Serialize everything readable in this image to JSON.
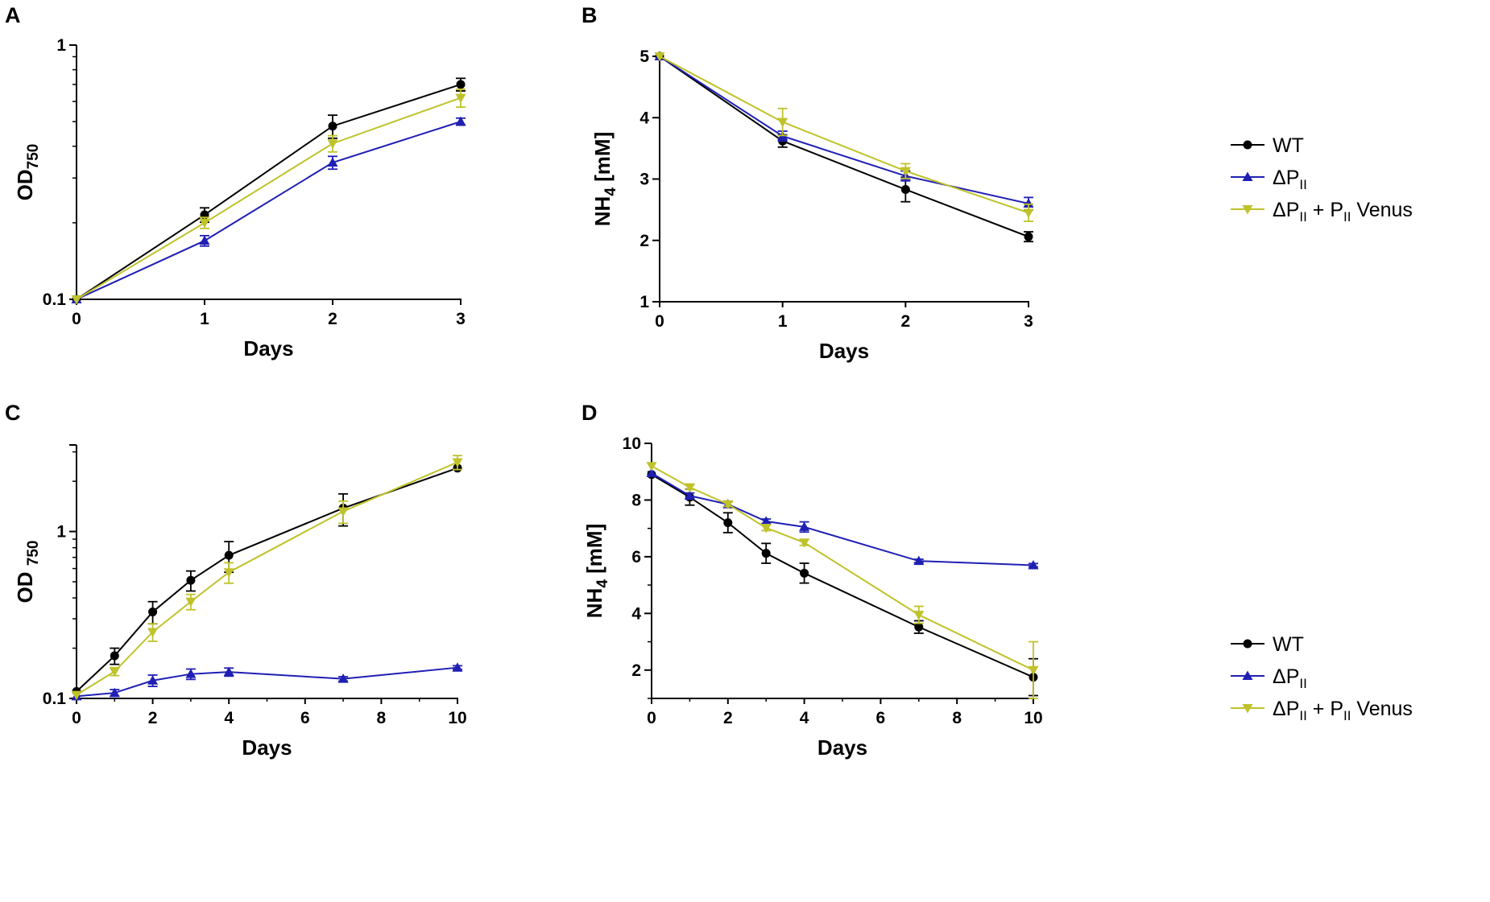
{
  "colors": {
    "wt": "#000000",
    "dp": "#1f1fb4",
    "venus": "#bfc22a",
    "axis": "#000000"
  },
  "legend": {
    "wt": "WT",
    "dp": {
      "base": "ΔP",
      "sub": "II"
    },
    "venus": {
      "base": "ΔP",
      "sub1": "II",
      "mid": " + P",
      "sub2": "II",
      "tail": " Venus"
    }
  },
  "chart_data": [
    {
      "panel": "A",
      "type": "line",
      "scale": "log",
      "xlabel": "Days",
      "ylabel": {
        "base": "OD",
        "sub": "750"
      },
      "xlim": [
        0,
        3
      ],
      "ylim": [
        0.1,
        1
      ],
      "xticks": [
        "0",
        "1",
        "2",
        "3"
      ],
      "yticks": [
        "0.1",
        "1"
      ],
      "series": [
        {
          "key": "wt",
          "name": "WT",
          "marker": "circle",
          "x": [
            0,
            1,
            2,
            3
          ],
          "y": [
            0.1,
            0.215,
            0.48,
            0.7
          ],
          "err": [
            0,
            0.014,
            0.05,
            0.04
          ]
        },
        {
          "key": "dp",
          "name": "ΔPII",
          "marker": "triangle-up",
          "x": [
            0,
            1,
            2,
            3
          ],
          "y": [
            0.1,
            0.17,
            0.345,
            0.5
          ],
          "err": [
            0,
            0.008,
            0.02,
            0.016
          ]
        },
        {
          "key": "venus",
          "name": "ΔPII + PII Venus",
          "marker": "triangle-down",
          "x": [
            0,
            1,
            2,
            3
          ],
          "y": [
            0.1,
            0.2,
            0.41,
            0.62
          ],
          "err": [
            0,
            0.01,
            0.03,
            0.05
          ]
        }
      ]
    },
    {
      "panel": "B",
      "type": "line",
      "scale": "linear",
      "xlabel": "Days",
      "ylabel": {
        "base": "NH",
        "sub": "4",
        "tail": " [mM]"
      },
      "xlim": [
        0,
        3
      ],
      "ylim": [
        1,
        5
      ],
      "xticks": [
        "0",
        "1",
        "2",
        "3"
      ],
      "yticks": [
        "1",
        "2",
        "3",
        "4",
        "5"
      ],
      "series": [
        {
          "key": "wt",
          "name": "WT",
          "marker": "circle",
          "x": [
            0,
            1,
            2,
            3
          ],
          "y": [
            5,
            3.62,
            2.83,
            2.06
          ],
          "err": [
            0,
            0.1,
            0.2,
            0.08
          ]
        },
        {
          "key": "dp",
          "name": "ΔPII",
          "marker": "triangle-up",
          "x": [
            0,
            1,
            2,
            3
          ],
          "y": [
            5,
            3.7,
            3.05,
            2.6
          ],
          "err": [
            0,
            0.08,
            0.08,
            0.1
          ]
        },
        {
          "key": "venus",
          "name": "ΔPII + PII Venus",
          "marker": "triangle-down",
          "x": [
            0,
            1,
            2,
            3
          ],
          "y": [
            5,
            3.93,
            3.13,
            2.45
          ],
          "err": [
            0,
            0.22,
            0.12,
            0.14
          ]
        }
      ]
    },
    {
      "panel": "C",
      "type": "line",
      "scale": "log",
      "xlabel": "Days",
      "ylabel": {
        "base": "OD ",
        "sub": "750"
      },
      "xlim": [
        0,
        10
      ],
      "ylim": [
        0.1,
        3.3
      ],
      "xticks": [
        "0",
        "2",
        "4",
        "6",
        "8",
        "10"
      ],
      "yticks": [
        "0.1",
        "1"
      ],
      "series": [
        {
          "key": "wt",
          "name": "WT",
          "marker": "circle",
          "x": [
            0,
            1,
            2,
            3,
            4,
            7,
            10
          ],
          "y": [
            0.11,
            0.18,
            0.33,
            0.51,
            0.72,
            1.38,
            2.4
          ],
          "err": [
            0,
            0.02,
            0.05,
            0.07,
            0.15,
            0.3,
            0
          ]
        },
        {
          "key": "dp",
          "name": "ΔPII",
          "marker": "triangle-up",
          "x": [
            0,
            1,
            2,
            3,
            4,
            7,
            10
          ],
          "y": [
            0.103,
            0.108,
            0.128,
            0.14,
            0.144,
            0.131,
            0.153
          ],
          "err": [
            0,
            0.005,
            0.01,
            0.01,
            0.008,
            0.004,
            0.004
          ]
        },
        {
          "key": "venus",
          "name": "ΔPII + PII Venus",
          "marker": "triangle-down",
          "x": [
            0,
            1,
            2,
            3,
            4,
            7,
            10
          ],
          "y": [
            0.105,
            0.145,
            0.25,
            0.38,
            0.57,
            1.32,
            2.6
          ],
          "err": [
            0,
            0.008,
            0.03,
            0.04,
            0.08,
            0.2,
            0.25
          ]
        }
      ]
    },
    {
      "panel": "D",
      "type": "line",
      "scale": "linear",
      "xlabel": "Days",
      "ylabel": {
        "base": "NH",
        "sub": "4",
        "tail": " [mM]"
      },
      "xlim": [
        0,
        10
      ],
      "ylim": [
        1,
        10
      ],
      "xticks": [
        "0",
        "2",
        "4",
        "6",
        "8",
        "10"
      ],
      "yticks": [
        "2",
        "4",
        "6",
        "8",
        "10"
      ],
      "series": [
        {
          "key": "wt",
          "name": "WT",
          "marker": "circle",
          "x": [
            0,
            1,
            2,
            3,
            4,
            7,
            10
          ],
          "y": [
            8.9,
            8.1,
            7.2,
            6.12,
            5.42,
            3.52,
            1.75
          ],
          "err": [
            0,
            0.28,
            0.35,
            0.35,
            0.35,
            0.22,
            0.65
          ]
        },
        {
          "key": "dp",
          "name": "ΔPII",
          "marker": "triangle-up",
          "x": [
            0,
            1,
            2,
            3,
            4,
            7,
            10
          ],
          "y": [
            8.95,
            8.15,
            7.85,
            7.25,
            7.05,
            5.85,
            5.7
          ],
          "err": [
            0,
            0.1,
            0.1,
            0.08,
            0.18,
            0.06,
            0.06
          ]
        },
        {
          "key": "venus",
          "name": "ΔPII + PII Venus",
          "marker": "triangle-down",
          "x": [
            0,
            1,
            2,
            3,
            4,
            7,
            10
          ],
          "y": [
            9.2,
            8.45,
            7.85,
            7.02,
            6.5,
            3.95,
            2.0
          ],
          "err": [
            0,
            0.08,
            0.08,
            0.1,
            0.1,
            0.3,
            1.0
          ]
        }
      ]
    }
  ]
}
